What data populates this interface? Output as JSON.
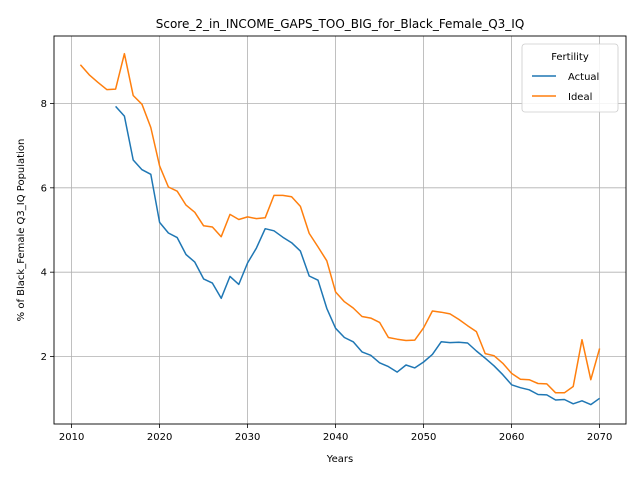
{
  "chart_data": {
    "type": "line",
    "title": "Score_2_in_INCOME_GAPS_TOO_BIG_for_Black_Female_Q3_IQ",
    "xlabel": "Years",
    "ylabel": "% of Black_Female Q3_IQ Population",
    "xlim": [
      2008,
      2073
    ],
    "ylim": [
      0.4,
      9.6
    ],
    "xticks": [
      2010,
      2020,
      2030,
      2040,
      2050,
      2060,
      2070
    ],
    "yticks": [
      2,
      4,
      6,
      8
    ],
    "grid": true,
    "legend": {
      "title": "Fertility",
      "placement": "top-right"
    },
    "series": [
      {
        "name": "Actual",
        "color": "#1f77b4",
        "x": [
          2015,
          2016,
          2017,
          2018,
          2019,
          2020,
          2021,
          2022,
          2023,
          2024,
          2025,
          2026,
          2027,
          2028,
          2029,
          2030,
          2031,
          2032,
          2033,
          2034,
          2035,
          2036,
          2037,
          2038,
          2039,
          2040,
          2041,
          2042,
          2043,
          2044,
          2045,
          2046,
          2047,
          2048,
          2049,
          2050,
          2051,
          2052,
          2053,
          2054,
          2055,
          2056,
          2057,
          2058,
          2059,
          2060,
          2061,
          2062,
          2063,
          2064,
          2065,
          2066,
          2067,
          2068,
          2069,
          2070
        ],
        "values": [
          7.93,
          7.7,
          6.66,
          6.43,
          6.32,
          5.18,
          4.93,
          4.82,
          4.42,
          4.24,
          3.84,
          3.74,
          3.38,
          3.9,
          3.71,
          4.22,
          4.57,
          5.03,
          4.98,
          4.83,
          4.7,
          4.5,
          3.91,
          3.81,
          3.14,
          2.67,
          2.45,
          2.35,
          2.11,
          2.03,
          1.85,
          1.76,
          1.63,
          1.8,
          1.73,
          1.87,
          2.05,
          2.35,
          2.33,
          2.34,
          2.32,
          2.13,
          1.96,
          1.78,
          1.57,
          1.33,
          1.26,
          1.21,
          1.1,
          1.09,
          0.97,
          0.98,
          0.88,
          0.95,
          0.86,
          1.01
        ]
      },
      {
        "name": "Ideal",
        "color": "#ff7f0e",
        "x": [
          2011,
          2012,
          2013,
          2014,
          2015,
          2016,
          2017,
          2018,
          2019,
          2020,
          2021,
          2022,
          2023,
          2024,
          2025,
          2026,
          2027,
          2028,
          2029,
          2030,
          2031,
          2032,
          2033,
          2034,
          2035,
          2036,
          2037,
          2038,
          2039,
          2040,
          2041,
          2042,
          2043,
          2044,
          2045,
          2046,
          2047,
          2048,
          2049,
          2050,
          2051,
          2052,
          2053,
          2054,
          2055,
          2056,
          2057,
          2058,
          2059,
          2060,
          2061,
          2062,
          2063,
          2064,
          2065,
          2066,
          2067,
          2068,
          2069,
          2070
        ],
        "values": [
          8.92,
          8.68,
          8.5,
          8.33,
          8.34,
          9.18,
          8.19,
          7.98,
          7.43,
          6.52,
          6.02,
          5.92,
          5.59,
          5.42,
          5.1,
          5.07,
          4.84,
          5.37,
          5.25,
          5.31,
          5.27,
          5.29,
          5.82,
          5.82,
          5.79,
          5.56,
          4.92,
          4.6,
          4.27,
          3.53,
          3.3,
          3.15,
          2.95,
          2.91,
          2.81,
          2.45,
          2.41,
          2.38,
          2.39,
          2.68,
          3.08,
          3.05,
          3.01,
          2.88,
          2.73,
          2.59,
          2.07,
          2.02,
          1.84,
          1.6,
          1.46,
          1.45,
          1.36,
          1.35,
          1.14,
          1.14,
          1.29,
          2.4,
          1.45,
          2.19
        ]
      }
    ]
  }
}
